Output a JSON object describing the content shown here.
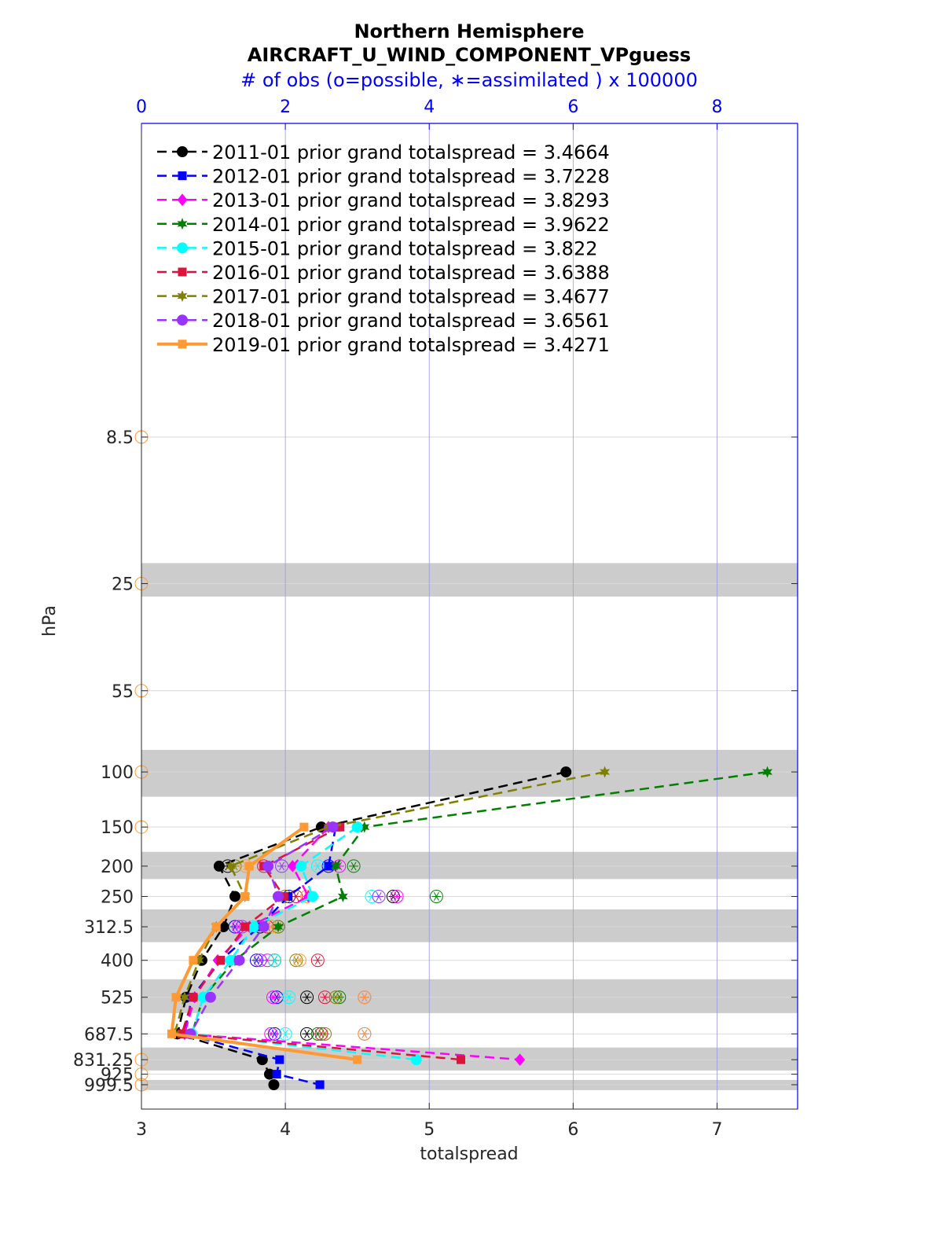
{
  "chart_data": {
    "type": "line",
    "title": "Northern Hemisphere",
    "subtitle": "AIRCRAFT_U_WIND_COMPONENT_VPguess",
    "top_axis_label": "# of obs (o=possible, ∗=assimilated ) x 100000",
    "xlabel": "totalspread",
    "ylabel": "hPa",
    "xlim": [
      3,
      7.56
    ],
    "x_ticks": [
      "3",
      "4",
      "5",
      "6",
      "7"
    ],
    "top_xlim": [
      0,
      9.12
    ],
    "top_x_ticks": [
      "0",
      "2",
      "4",
      "6",
      "8"
    ],
    "y_scale": "log",
    "y_reversed": true,
    "levels": [
      8.5,
      25,
      55,
      100,
      150,
      200,
      250,
      312.5,
      400,
      525,
      687.5,
      831.25,
      925,
      999.5
    ],
    "y_tick_labels": [
      "8.5",
      "25",
      "55",
      "100",
      "150",
      "200",
      "250",
      "312.5",
      "400",
      "525",
      "687.5",
      "831.25",
      "925",
      "999.5"
    ],
    "shaded_bands": [
      [
        21.5,
        27.5
      ],
      [
        85,
        120
      ],
      [
        180,
        220
      ],
      [
        275,
        350
      ],
      [
        460,
        590
      ],
      [
        760,
        900
      ],
      [
        965,
        1040
      ]
    ],
    "legend_position": "upper-left",
    "grid": true,
    "series": [
      {
        "name": "2011-01 prior grand totalspread = 3.4664",
        "color": "#000000",
        "dash": true,
        "marker": "circle",
        "values": {
          "100": 5.95,
          "150": 4.25,
          "200": 3.54,
          "250": 3.65,
          "312.5": 3.57,
          "400": 3.42,
          "525": 3.31,
          "687.5": 3.25,
          "831.25": 3.84,
          "925": 3.89,
          "999.5": 3.92
        },
        "possible": {
          "200": 1.2,
          "250": 3.5,
          "312.5": 1.65,
          "400": 1.85,
          "525": 2.3,
          "687.5": 2.3
        },
        "assimilated": {
          "200": 1.2,
          "250": 3.5,
          "312.5": 1.65,
          "400": 1.85,
          "525": 2.3,
          "687.5": 2.3
        }
      },
      {
        "name": "2012-01 prior grand totalspread = 3.7228",
        "color": "#0000ff",
        "dash": true,
        "marker": "square",
        "values": {
          "150": 4.35,
          "200": 4.3,
          "250": 4.02,
          "312.5": 3.82,
          "400": 3.55,
          "525": 3.35,
          "687.5": 3.3,
          "831.25": 3.96,
          "925": 3.94,
          "999.5": 4.24
        },
        "possible": {
          "200": 2.6,
          "250": 2.05,
          "312.5": 1.3,
          "400": 1.6,
          "525": 1.88,
          "687.5": 1.85
        },
        "assimilated": {
          "200": 2.6,
          "250": 2.05,
          "312.5": 1.3,
          "400": 1.6,
          "525": 1.88,
          "687.5": 1.85
        }
      },
      {
        "name": "2013-01 prior grand totalspread = 3.8293",
        "color": "#ff00ff",
        "dash": true,
        "marker": "diamond",
        "values": {
          "150": 4.3,
          "200": 4.05,
          "250": 4.16,
          "312.5": 3.75,
          "400": 3.53,
          "525": 3.37,
          "687.5": 3.3,
          "831.25": 5.63
        },
        "possible": {
          "200": 2.75,
          "250": 3.55,
          "312.5": 1.35,
          "400": 1.75,
          "525": 1.83,
          "687.5": 1.8
        },
        "assimilated": {
          "200": 2.75,
          "250": 3.55,
          "312.5": 1.35,
          "400": 1.75,
          "525": 1.83,
          "687.5": 1.8
        }
      },
      {
        "name": "2014-01 prior grand totalspread = 3.9622",
        "color": "#008000",
        "dash": true,
        "marker": "hexagram",
        "values": {
          "100": 7.35,
          "150": 4.55,
          "200": 4.35,
          "250": 4.4,
          "312.5": 3.95,
          "400": 3.65,
          "525": 3.43,
          "687.5": 3.35
        },
        "possible": {
          "200": 2.95,
          "250": 4.1,
          "312.5": 1.9,
          "400": 1.85,
          "525": 2.75,
          "687.5": 2.45
        },
        "assimilated": {
          "200": 2.95,
          "250": 4.1,
          "312.5": 1.9,
          "400": 1.85,
          "525": 2.75,
          "687.5": 2.45
        }
      },
      {
        "name": "2015-01 prior grand totalspread = 3.822",
        "color": "#00ffff",
        "dash": true,
        "marker": "circle",
        "values": {
          "150": 4.5,
          "200": 4.11,
          "250": 4.19,
          "312.5": 3.78,
          "400": 3.62,
          "525": 3.43,
          "687.5": 3.35,
          "831.25": 4.91
        },
        "possible": {
          "200": 2.45,
          "250": 3.2,
          "312.5": 1.55,
          "400": 1.85,
          "525": 2.05,
          "687.5": 2.0
        },
        "assimilated": {
          "200": 2.45,
          "250": 3.2,
          "312.5": 1.55,
          "400": 1.85,
          "525": 2.05,
          "687.5": 2.0
        }
      },
      {
        "name": "2016-01 prior grand totalspread = 3.6388",
        "color": "#dc143c",
        "dash": true,
        "marker": "square",
        "values": {
          "150": 4.38,
          "200": 3.85,
          "250": 3.99,
          "312.5": 3.72,
          "400": 3.55,
          "525": 3.36,
          "687.5": 3.28,
          "831.25": 5.22
        },
        "possible": {
          "200": 1.7,
          "250": 2.15,
          "312.5": 1.75,
          "400": 2.45,
          "525": 2.55,
          "687.5": 2.5
        },
        "assimilated": {
          "200": 1.7,
          "250": 2.15,
          "312.5": 1.75,
          "400": 2.45,
          "525": 2.55,
          "687.5": 2.5
        }
      },
      {
        "name": "2017-01 prior grand totalspread = 3.4677",
        "color": "#808000",
        "dash": true,
        "marker": "hexagram",
        "values": {
          "100": 6.22,
          "150": 4.3,
          "200": 3.62,
          "250": 3.72,
          "312.5": 3.52,
          "400": 3.4,
          "525": 3.3,
          "687.5": 3.23
        },
        "possible": {
          "200": 1.3,
          "250": 2.0,
          "312.5": 1.9,
          "400": 2.15,
          "525": 2.7,
          "687.5": 2.55
        },
        "assimilated": {
          "200": 1.3,
          "250": 2.0,
          "312.5": 1.9,
          "400": 2.15,
          "525": 2.7,
          "687.5": 2.55
        }
      },
      {
        "name": "2018-01 prior grand totalspread = 3.6561",
        "color": "#9933ff",
        "dash": true,
        "marker": "circle",
        "values": {
          "150": 4.33,
          "200": 3.88,
          "250": 3.95,
          "312.5": 3.85,
          "400": 3.68,
          "525": 3.48,
          "687.5": 3.34
        },
        "possible": {
          "200": 1.95,
          "250": 3.3,
          "312.5": 1.4,
          "400": 1.65,
          "525": 3.1,
          "687.5": 3.1
        },
        "assimilated": {
          "200": 1.95,
          "250": 3.3,
          "312.5": 1.4,
          "400": 1.65,
          "525": 3.1,
          "687.5": 3.1
        }
      },
      {
        "name": "2019-01 prior grand totalspread = 3.4271",
        "color": "#ff9933",
        "dash": false,
        "marker": "square",
        "values": {
          "150": 4.13,
          "200": 3.75,
          "250": 3.72,
          "312.5": 3.52,
          "400": 3.36,
          "525": 3.24,
          "687.5": 3.21,
          "831.25": 4.5
        },
        "possible": {
          "8.5": 0,
          "25": 0,
          "55": 0,
          "100": 0,
          "150": 0,
          "200": 1.45,
          "250": 2.3,
          "312.5": 1.8,
          "400": 2.2,
          "525": 3.1,
          "687.5": 3.1,
          "831.25": 0,
          "925": 0,
          "999.5": 0
        },
        "assimilated": {
          "200": 1.45,
          "250": 2.3,
          "312.5": 1.8,
          "400": 2.2,
          "525": 3.1,
          "687.5": 3.1
        }
      }
    ]
  }
}
